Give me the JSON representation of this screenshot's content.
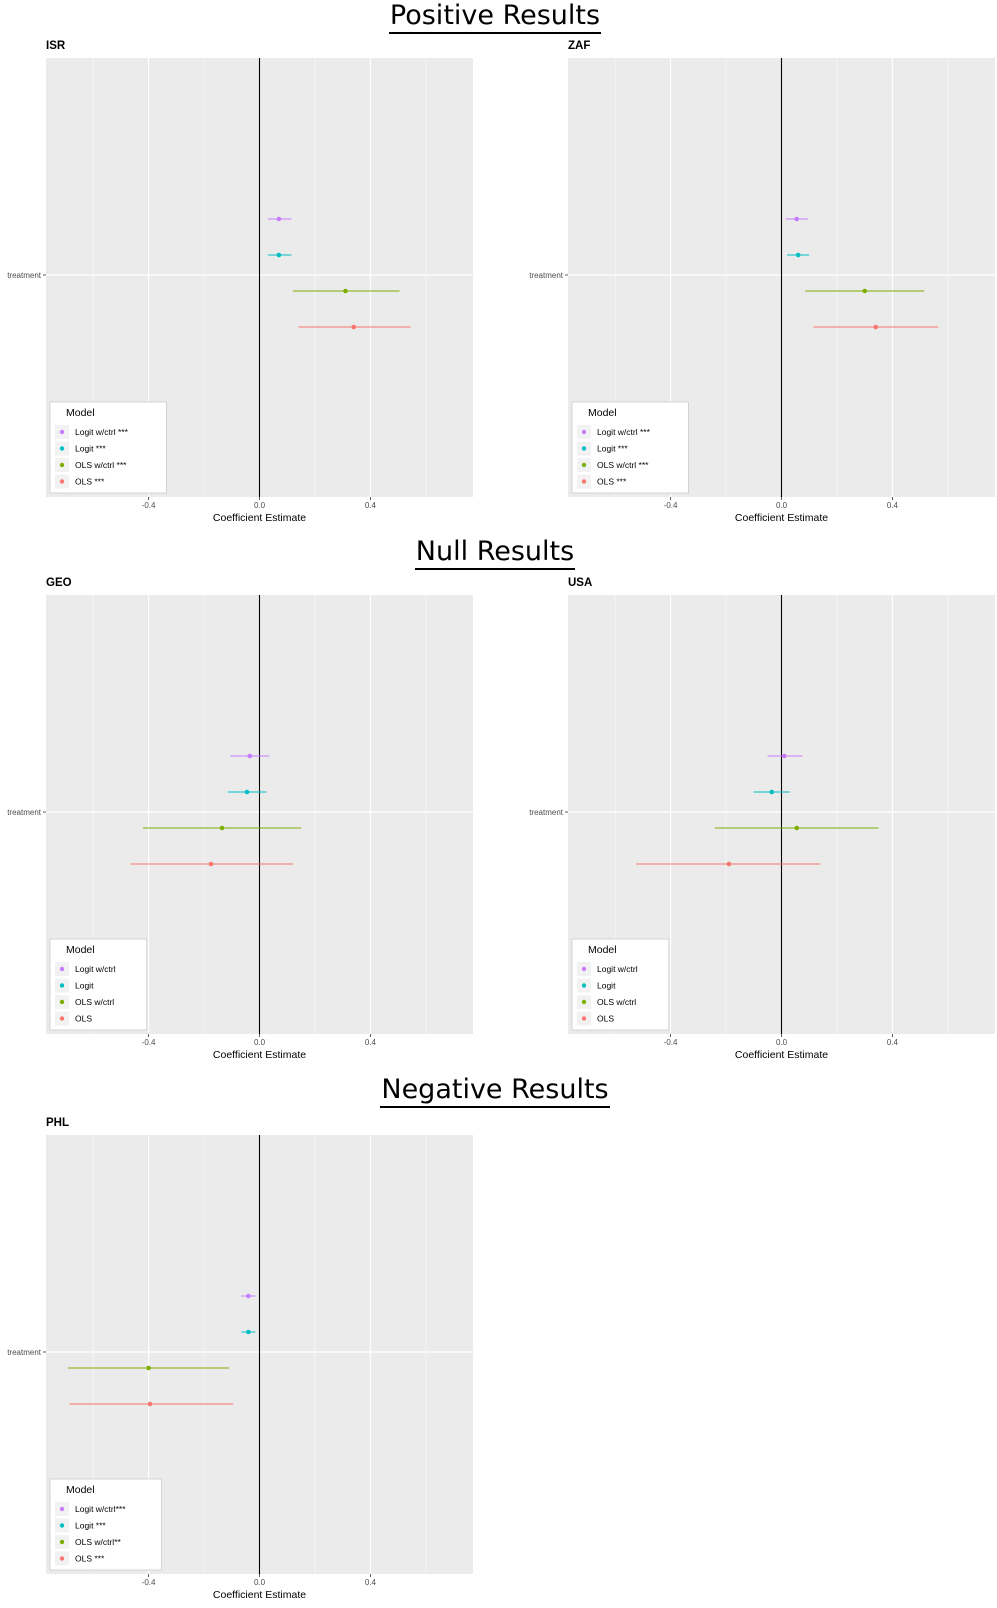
{
  "sections": [
    {
      "title": "Positive Results"
    },
    {
      "title": "Null Results"
    },
    {
      "title": "Negative Results"
    }
  ],
  "chart_data": [
    {
      "type": "scatter",
      "title": "ISR",
      "xlabel": "Coefficient Estimate",
      "ylabel": "",
      "y_tick": "treatment",
      "x_ticks": [
        -0.4,
        0.0,
        0.4
      ],
      "x_tick_labels": [
        "-0.4",
        "0.0",
        "0.4"
      ],
      "xlim": [
        -0.77,
        0.77
      ],
      "grid": true,
      "reference_line_x": 0,
      "legend": {
        "title": "Model",
        "position": "bottom-left"
      },
      "series": [
        {
          "name": "Logit w/ctrl ***",
          "color": "#C77CFF",
          "estimate": 0.07,
          "ci": [
            0.03,
            0.115
          ]
        },
        {
          "name": "Logit ***",
          "color": "#00BFC4",
          "estimate": 0.07,
          "ci": [
            0.03,
            0.115
          ]
        },
        {
          "name": "OLS w/ctrl ***",
          "color": "#7CAE00",
          "estimate": 0.31,
          "ci": [
            0.12,
            0.505
          ]
        },
        {
          "name": "OLS ***",
          "color": "#F8766D",
          "estimate": 0.34,
          "ci": [
            0.14,
            0.545
          ]
        }
      ]
    },
    {
      "type": "scatter",
      "title": "ZAF",
      "xlabel": "Coefficient Estimate",
      "ylabel": "",
      "y_tick": "treatment",
      "x_ticks": [
        -0.4,
        0.0,
        0.4
      ],
      "x_tick_labels": [
        "-0.4",
        "0.0",
        "0.4"
      ],
      "xlim": [
        -0.77,
        0.77
      ],
      "grid": true,
      "reference_line_x": 0,
      "legend": {
        "title": "Model",
        "position": "bottom-left"
      },
      "series": [
        {
          "name": "Logit w/ctrl ***",
          "color": "#C77CFF",
          "estimate": 0.055,
          "ci": [
            0.015,
            0.095
          ]
        },
        {
          "name": "Logit ***",
          "color": "#00BFC4",
          "estimate": 0.06,
          "ci": [
            0.02,
            0.1
          ]
        },
        {
          "name": "OLS w/ctrl ***",
          "color": "#7CAE00",
          "estimate": 0.3,
          "ci": [
            0.085,
            0.515
          ]
        },
        {
          "name": "OLS ***",
          "color": "#F8766D",
          "estimate": 0.34,
          "ci": [
            0.115,
            0.565
          ]
        }
      ]
    },
    {
      "type": "scatter",
      "title": "GEO",
      "xlabel": "Coefficient Estimate",
      "ylabel": "",
      "y_tick": "treatment",
      "x_ticks": [
        -0.4,
        0.0,
        0.4
      ],
      "x_tick_labels": [
        "-0.4",
        "0.0",
        "0.4"
      ],
      "xlim": [
        -0.77,
        0.77
      ],
      "grid": true,
      "reference_line_x": 0,
      "legend": {
        "title": "Model",
        "position": "bottom-left"
      },
      "series": [
        {
          "name": "Logit w/ctrl",
          "color": "#C77CFF",
          "estimate": -0.035,
          "ci": [
            -0.105,
            0.035
          ]
        },
        {
          "name": "Logit",
          "color": "#00BFC4",
          "estimate": -0.045,
          "ci": [
            -0.115,
            0.025
          ]
        },
        {
          "name": "OLS w/ctrl",
          "color": "#7CAE00",
          "estimate": -0.135,
          "ci": [
            -0.42,
            0.15
          ]
        },
        {
          "name": "OLS",
          "color": "#F8766D",
          "estimate": -0.175,
          "ci": [
            -0.465,
            0.12
          ]
        }
      ]
    },
    {
      "type": "scatter",
      "title": "USA",
      "xlabel": "Coefficient Estimate",
      "ylabel": "",
      "y_tick": "treatment",
      "x_ticks": [
        -0.4,
        0.0,
        0.4
      ],
      "x_tick_labels": [
        "-0.4",
        "0.0",
        "0.4"
      ],
      "xlim": [
        -0.77,
        0.77
      ],
      "grid": true,
      "reference_line_x": 0,
      "legend": {
        "title": "Model",
        "position": "bottom-left"
      },
      "series": [
        {
          "name": "Logit w/ctrl",
          "color": "#C77CFF",
          "estimate": 0.01,
          "ci": [
            -0.05,
            0.075
          ]
        },
        {
          "name": "Logit",
          "color": "#00BFC4",
          "estimate": -0.035,
          "ci": [
            -0.1,
            0.03
          ]
        },
        {
          "name": "OLS w/ctrl",
          "color": "#7CAE00",
          "estimate": 0.055,
          "ci": [
            -0.24,
            0.35
          ]
        },
        {
          "name": "OLS",
          "color": "#F8766D",
          "estimate": -0.19,
          "ci": [
            -0.525,
            0.14
          ]
        }
      ]
    },
    {
      "type": "scatter",
      "title": "PHL",
      "xlabel": "Coefficient Estimate",
      "ylabel": "",
      "y_tick": "treatment",
      "x_ticks": [
        -0.4,
        0.0,
        0.4
      ],
      "x_tick_labels": [
        "-0.4",
        "0.0",
        "0.4"
      ],
      "xlim": [
        -0.77,
        0.77
      ],
      "grid": true,
      "reference_line_x": 0,
      "legend": {
        "title": "Model",
        "position": "bottom-left"
      },
      "series": [
        {
          "name": "Logit w/ctrl***",
          "color": "#C77CFF",
          "estimate": -0.04,
          "ci": [
            -0.065,
            -0.015
          ]
        },
        {
          "name": "Logit ***",
          "color": "#00BFC4",
          "estimate": -0.04,
          "ci": [
            -0.065,
            -0.015
          ]
        },
        {
          "name": "OLS w/ctrl**",
          "color": "#7CAE00",
          "estimate": -0.4,
          "ci": [
            -0.69,
            -0.11
          ]
        },
        {
          "name": "OLS ***",
          "color": "#F8766D",
          "estimate": -0.395,
          "ci": [
            -0.685,
            -0.095
          ]
        }
      ]
    }
  ]
}
